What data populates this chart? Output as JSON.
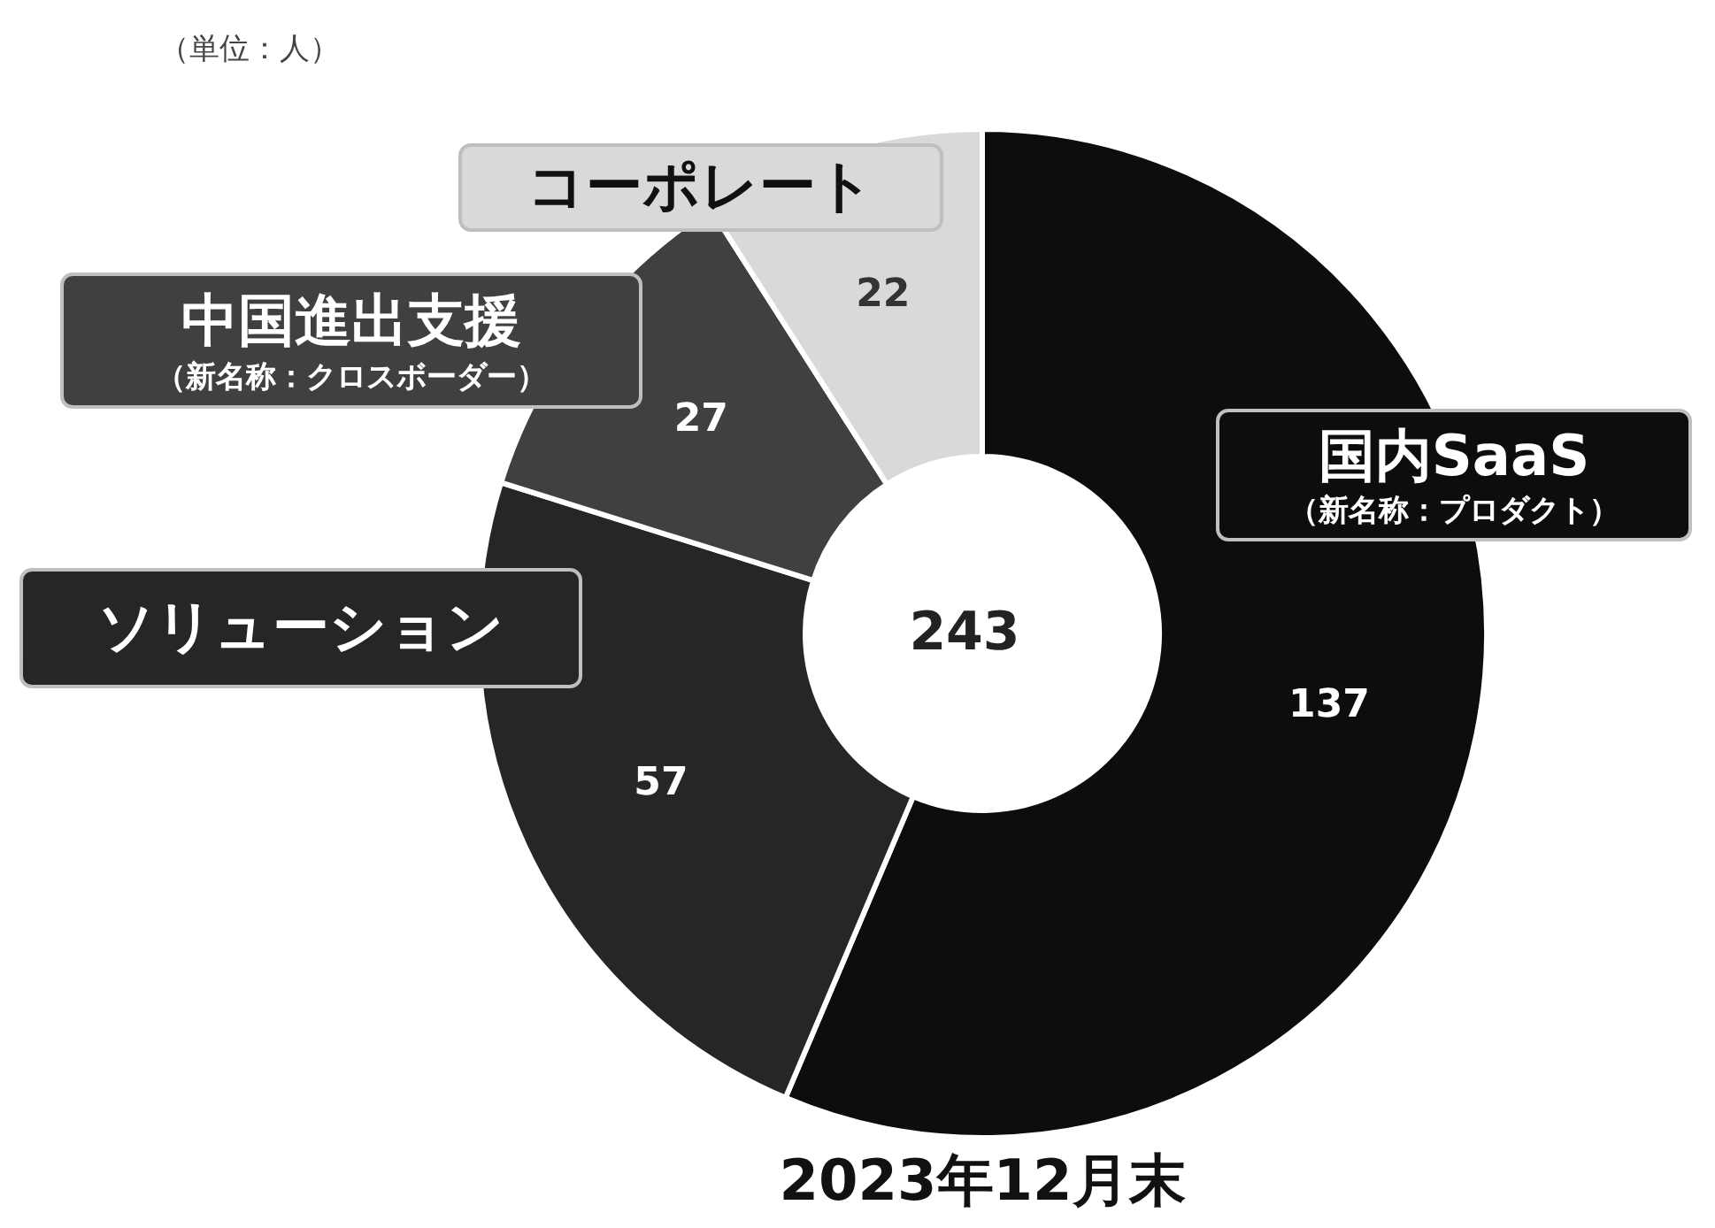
{
  "chart_data": {
    "type": "donut",
    "title": "2023年12月末",
    "categories": [
      "国内SaaS（新名称：プロダクト）",
      "ソリューション",
      "中国進出支援（新名称：クロスボーダー）",
      "コーポレート"
    ],
    "values": [
      137,
      57,
      27,
      22
    ],
    "colors": [
      "#0d0d0d",
      "#262626",
      "#404040",
      "#d9d9d9"
    ],
    "data_labels": true,
    "annotations": [
      "243",
      "（単位：人）"
    ]
  }
}
